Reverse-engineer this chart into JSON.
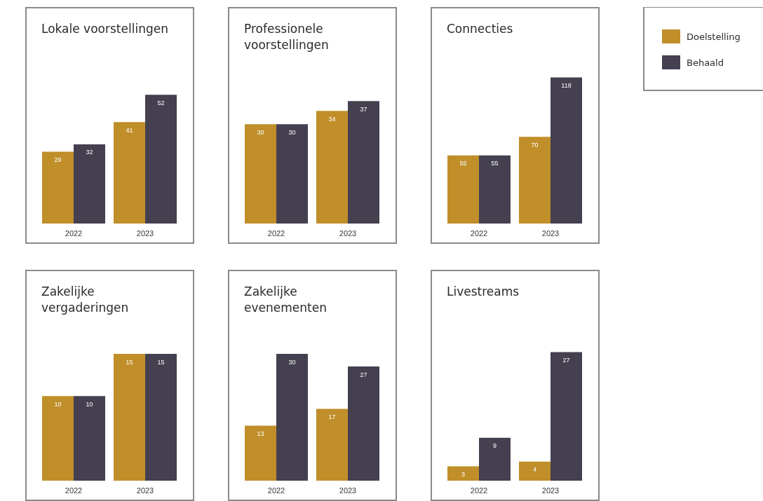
{
  "chart_data": [
    {
      "type": "bar",
      "title": "Lokale voorstellingen",
      "categories": [
        "2022",
        "2023"
      ],
      "series": [
        {
          "color": "#c08f2a",
          "values": [
            29,
            41
          ]
        },
        {
          "color": "#45404f",
          "values": [
            32,
            52
          ]
        }
      ],
      "data_labels": true,
      "tick_labels": "x"
    },
    {
      "type": "bar",
      "title": "Professionele voorstellingen",
      "categories": [
        "2022",
        "2023"
      ],
      "series": [
        {
          "color": "#c08f2a",
          "values": [
            30,
            34
          ]
        },
        {
          "color": "#45404f",
          "values": [
            30,
            37
          ]
        }
      ],
      "data_labels": true,
      "tick_labels": "x"
    },
    {
      "type": "bar",
      "title": "Connecties",
      "categories": [
        "2022",
        "2023"
      ],
      "series": [
        {
          "name": "Doelstelling",
          "color": "#c08f2a",
          "values": [
            55,
            70
          ]
        },
        {
          "name": "Behaald",
          "color": "#45404f",
          "values": [
            55,
            118
          ]
        }
      ],
      "data_labels": true,
      "legend": "right",
      "tick_labels": "x"
    },
    {
      "type": "bar",
      "title": "Zakelijke vergaderingen",
      "categories": [
        "2022",
        "2023"
      ],
      "series": [
        {
          "color": "#c08f2a",
          "values": [
            10,
            15
          ]
        },
        {
          "color": "#45404f",
          "values": [
            10,
            15
          ]
        }
      ],
      "data_labels": true,
      "tick_labels": "x"
    },
    {
      "type": "bar",
      "title": "Zakelijke evenementen",
      "categories": [
        "2022",
        "2023"
      ],
      "series": [
        {
          "color": "#c08f2a",
          "values": [
            13,
            17
          ]
        },
        {
          "color": "#45404f",
          "values": [
            30,
            27
          ]
        }
      ],
      "data_labels": true,
      "tick_labels": "x"
    },
    {
      "type": "bar",
      "title": "Livestreams",
      "categories": [
        "2022",
        "2023"
      ],
      "series": [
        {
          "color": "#c08f2a",
          "values": [
            3,
            4
          ]
        },
        {
          "color": "#45404f",
          "values": [
            9,
            27
          ]
        }
      ],
      "data_labels": true,
      "tick_labels": "x"
    }
  ]
}
